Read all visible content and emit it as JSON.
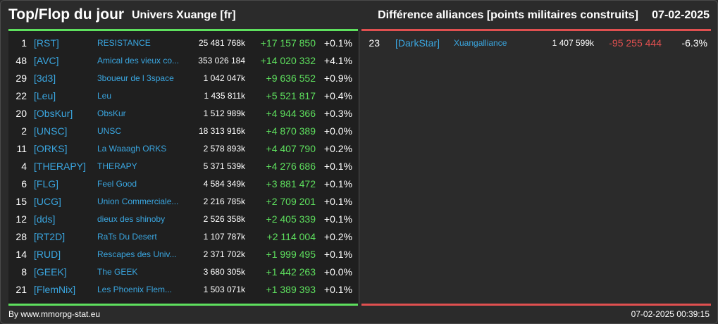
{
  "header": {
    "title": "Top/Flop du jour",
    "universe": "Univers Xuange [fr]",
    "metric": "Différence alliances [points militaires construits]",
    "date": "07-02-2025"
  },
  "colors": {
    "positive": "#5ee05e",
    "negative": "#e05050",
    "link": "#3aa6e0",
    "top_line": "#5ee05e",
    "flop_line": "#e05050"
  },
  "top": [
    {
      "rank": "1",
      "tag": "[RST]",
      "name": "RESISTANCE",
      "points": "25 481 768k",
      "diff": "+17 157 850",
      "pct": "+0.1%"
    },
    {
      "rank": "48",
      "tag": "[AVC]",
      "name": "Amical des vieux co...",
      "points": "353 026 184",
      "diff": "+14 020 332",
      "pct": "+4.1%"
    },
    {
      "rank": "29",
      "tag": "[3d3]",
      "name": "3boueur de l 3space",
      "points": "1 042 047k",
      "diff": "+9 636 552",
      "pct": "+0.9%"
    },
    {
      "rank": "22",
      "tag": "[Leu]",
      "name": "Leu",
      "points": "1 435 811k",
      "diff": "+5 521 817",
      "pct": "+0.4%"
    },
    {
      "rank": "20",
      "tag": "[ObsKur]",
      "name": "ObsKur",
      "points": "1 512 989k",
      "diff": "+4 944 366",
      "pct": "+0.3%"
    },
    {
      "rank": "2",
      "tag": "[UNSC]",
      "name": "UNSC",
      "points": "18 313 916k",
      "diff": "+4 870 389",
      "pct": "+0.0%"
    },
    {
      "rank": "11",
      "tag": "[ORKS]",
      "name": "La Waaagh ORKS",
      "points": "2 578 893k",
      "diff": "+4 407 790",
      "pct": "+0.2%"
    },
    {
      "rank": "4",
      "tag": "[THERAPY]",
      "name": "THERAPY",
      "points": "5 371 539k",
      "diff": "+4 276 686",
      "pct": "+0.1%"
    },
    {
      "rank": "6",
      "tag": "[FLG]",
      "name": "Feel Good",
      "points": "4 584 349k",
      "diff": "+3 881 472",
      "pct": "+0.1%"
    },
    {
      "rank": "15",
      "tag": "[UCG]",
      "name": "Union Commerciale...",
      "points": "2 216 785k",
      "diff": "+2 709 201",
      "pct": "+0.1%"
    },
    {
      "rank": "12",
      "tag": "[dds]",
      "name": "dieux des shinoby",
      "points": "2 526 358k",
      "diff": "+2 405 339",
      "pct": "+0.1%"
    },
    {
      "rank": "28",
      "tag": "[RT2D]",
      "name": "RaTs Du Desert",
      "points": "1 107 787k",
      "diff": "+2 114 004",
      "pct": "+0.2%"
    },
    {
      "rank": "14",
      "tag": "[RUD]",
      "name": "Rescapes des Univ...",
      "points": "2 371 702k",
      "diff": "+1 999 495",
      "pct": "+0.1%"
    },
    {
      "rank": "8",
      "tag": "[GEEK]",
      "name": "The GEEK",
      "points": "3 680 305k",
      "diff": "+1 442 263",
      "pct": "+0.0%"
    },
    {
      "rank": "21",
      "tag": "[FlemNix]",
      "name": "Les Phoenix Flem...",
      "points": "1 503 071k",
      "diff": "+1 389 393",
      "pct": "+0.1%"
    }
  ],
  "flop": [
    {
      "rank": "23",
      "tag": "[DarkStar]",
      "name": "Xuangalliance",
      "points": "1 407 599k",
      "diff": "-95 255 444",
      "pct": "-6.3%"
    }
  ],
  "footer": {
    "source": "By www.mmorpg-stat.eu",
    "timestamp": "07-02-2025 00:39:15"
  }
}
